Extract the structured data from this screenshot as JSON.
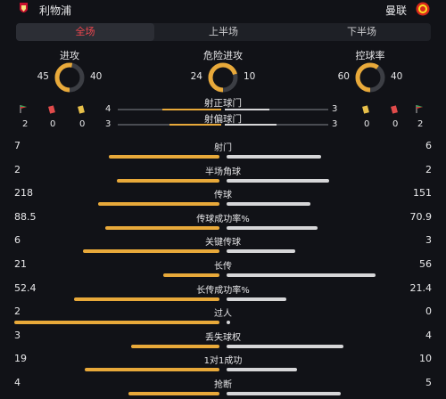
{
  "header": {
    "home_name": "利物浦",
    "away_name": "曼联"
  },
  "tabs": [
    {
      "label": "全场",
      "active": true
    },
    {
      "label": "上半场",
      "active": false
    },
    {
      "label": "下半场",
      "active": false
    }
  ],
  "colors": {
    "home": "#e8a93a",
    "away": "#d6d6d8",
    "track": "#3c3e44",
    "active_tab": "#f0474f"
  },
  "donuts": [
    {
      "title": "进攻",
      "home": 45,
      "away": 40
    },
    {
      "title": "危险进攻",
      "home": 24,
      "away": 10
    },
    {
      "title": "控球率",
      "home": 60,
      "away": 40
    }
  ],
  "discipline": {
    "home": {
      "corners": 2,
      "red": 0,
      "yellow": 0
    },
    "away": {
      "yellow": 0,
      "red": 0,
      "corners": 2
    }
  },
  "shots": [
    {
      "label": "射正球门",
      "home": 4,
      "away": 3
    },
    {
      "label": "射偏球门",
      "home": 3,
      "away": 3
    }
  ],
  "stats": [
    {
      "label": "射门",
      "home": "7",
      "away": "6",
      "hv": 7,
      "av": 6
    },
    {
      "label": "半场角球",
      "home": "2",
      "away": "2",
      "hv": 2,
      "av": 2
    },
    {
      "label": "传球",
      "home": "218",
      "away": "151",
      "hv": 218,
      "av": 151
    },
    {
      "label": "传球成功率%",
      "home": "88.5",
      "away": "70.9",
      "hv": 88.5,
      "av": 70.9
    },
    {
      "label": "关键传球",
      "home": "6",
      "away": "3",
      "hv": 6,
      "av": 3
    },
    {
      "label": "长传",
      "home": "21",
      "away": "56",
      "hv": 21,
      "av": 56
    },
    {
      "label": "长传成功率%",
      "home": "52.4",
      "away": "21.4",
      "hv": 52.4,
      "av": 21.4
    },
    {
      "label": "过人",
      "home": "2",
      "away": "0",
      "hv": 2,
      "av": 0
    },
    {
      "label": "丢失球权",
      "home": "3",
      "away": "4",
      "hv": 3,
      "av": 4
    },
    {
      "label": "1对1成功",
      "home": "19",
      "away": "10",
      "hv": 19,
      "av": 10
    },
    {
      "label": "抢断",
      "home": "4",
      "away": "5",
      "hv": 4,
      "av": 5
    }
  ]
}
